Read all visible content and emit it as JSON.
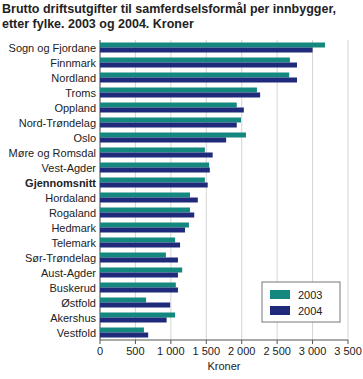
{
  "chart_data": {
    "type": "bar",
    "orientation": "horizontal",
    "title": "Brutto driftsutgifter til samferdselsformål per innbygger, etter fylke. 2003 og 2004. Kroner",
    "x_label": "Kroner",
    "categories": [
      "Sogn og Fjordane",
      "Finnmark",
      "Nordland",
      "Troms",
      "Oppland",
      "Nord-Trøndelag",
      "Oslo",
      "Møre og Romsdal",
      "Vest-Agder",
      "Gjennomsnitt",
      "Hordaland",
      "Rogaland",
      "Hedmark",
      "Telemark",
      "Sør-Trøndelag",
      "Aust-Agder",
      "Buskerud",
      "Østfold",
      "Akershus",
      "Vestfold"
    ],
    "series": [
      {
        "name": "2003",
        "color": "#14877f",
        "values": [
          3175,
          2680,
          2670,
          2215,
          1930,
          1990,
          2060,
          1480,
          1540,
          1480,
          1270,
          1270,
          1255,
          1060,
          930,
          1160,
          1070,
          650,
          1060,
          620
        ]
      },
      {
        "name": "2004",
        "color": "#1f2a7a",
        "values": [
          3000,
          2780,
          2780,
          2260,
          2030,
          1930,
          1780,
          1590,
          1550,
          1520,
          1380,
          1330,
          1200,
          1130,
          1100,
          1100,
          1100,
          990,
          940,
          680
        ]
      }
    ],
    "xlim": [
      0,
      3500
    ],
    "xticks": [
      0,
      500,
      {
        "value": 1000,
        "label": "1 000"
      },
      {
        "value": 1500,
        "label": "1 500"
      },
      {
        "value": 2000,
        "label": "2 000"
      },
      {
        "value": 2500,
        "label": "2 500"
      },
      {
        "value": 3000,
        "label": "3 000"
      },
      {
        "value": 3500,
        "label": "3 500"
      }
    ],
    "grid": true,
    "legend": "lower right"
  }
}
